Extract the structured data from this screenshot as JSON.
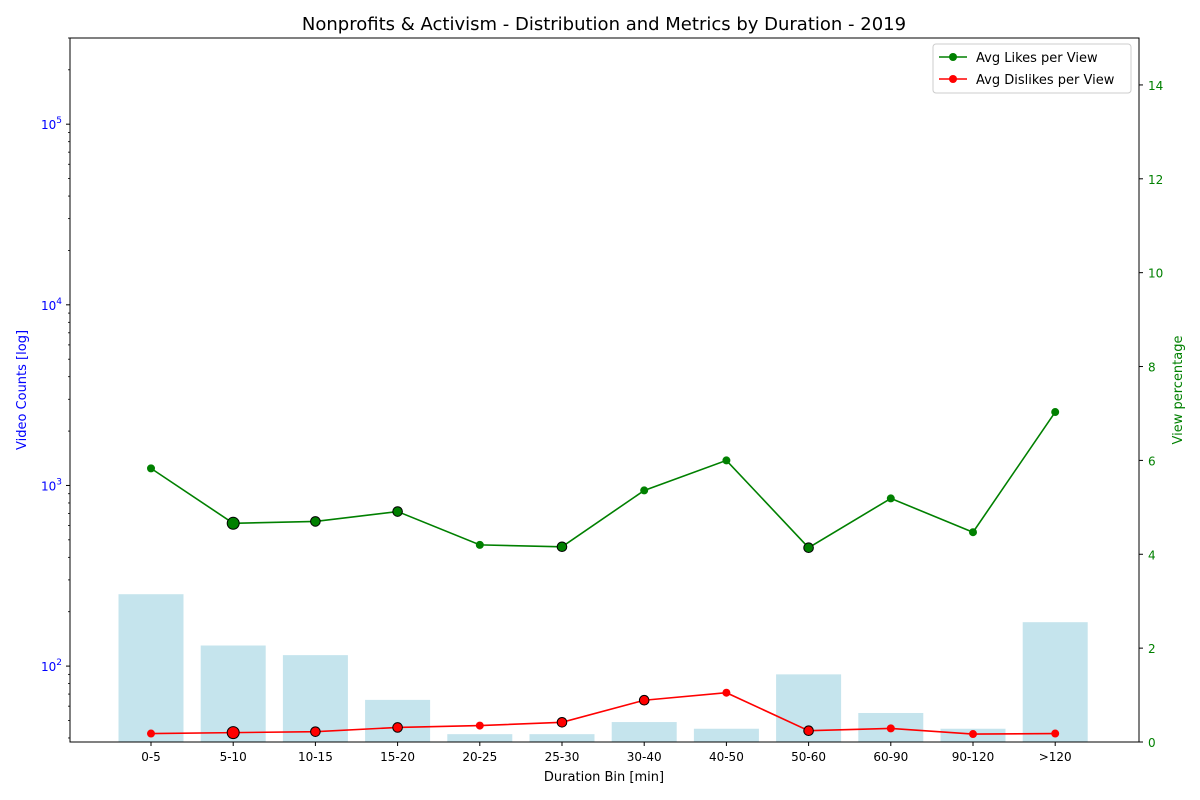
{
  "chart_data": {
    "type": "bar+line",
    "title": "Nonprofits & Activism - Distribution and Metrics by Duration - 2019",
    "xlabel": "Duration Bin [min]",
    "ylabel_left": "Video Counts [log]",
    "ylabel_right": "View percentage",
    "categories": [
      "0-5",
      "5-10",
      "10-15",
      "15-20",
      "20-25",
      "25-30",
      "30-40",
      "40-50",
      "50-60",
      "60-90",
      "90-120",
      ">120"
    ],
    "bars": {
      "axis": "left",
      "scale": "log",
      "color": "#add8e6",
      "values": [
        250,
        130,
        115,
        65,
        42,
        42,
        49,
        45,
        90,
        55,
        45,
        175
      ]
    },
    "left_axis": {
      "ylim": [
        38,
        300000
      ],
      "ticks": [
        100,
        1000,
        10000,
        100000
      ],
      "tick_labels": [
        "10",
        "10",
        "10",
        "10"
      ],
      "tick_exponents": [
        "2",
        "3",
        "4",
        "5"
      ],
      "color": "#0000ff"
    },
    "right_axis": {
      "ylim": [
        0,
        15
      ],
      "ticks": [
        0,
        2,
        4,
        6,
        8,
        10,
        12,
        14
      ],
      "tick_labels": [
        "0",
        "2",
        "4",
        "6",
        "8",
        "10",
        "12",
        "14"
      ],
      "color": "#008000"
    },
    "series": [
      {
        "name": "Avg Likes per View",
        "axis": "right",
        "color": "#008000",
        "values": [
          5.83,
          4.66,
          4.7,
          4.91,
          4.2,
          4.16,
          5.36,
          6.0,
          4.14,
          5.19,
          4.47,
          7.03
        ],
        "highlighted": [
          false,
          true,
          true,
          true,
          false,
          true,
          false,
          false,
          true,
          false,
          false,
          false
        ]
      },
      {
        "name": "Avg Dislikes per View",
        "axis": "right",
        "color": "#ff0000",
        "values": [
          0.18,
          0.2,
          0.22,
          0.31,
          0.35,
          0.42,
          0.89,
          1.05,
          0.24,
          0.29,
          0.17,
          0.18
        ],
        "highlighted": [
          false,
          true,
          true,
          true,
          false,
          true,
          true,
          false,
          true,
          false,
          false,
          false
        ]
      }
    ],
    "legend_position": "top-right",
    "grid": false
  }
}
